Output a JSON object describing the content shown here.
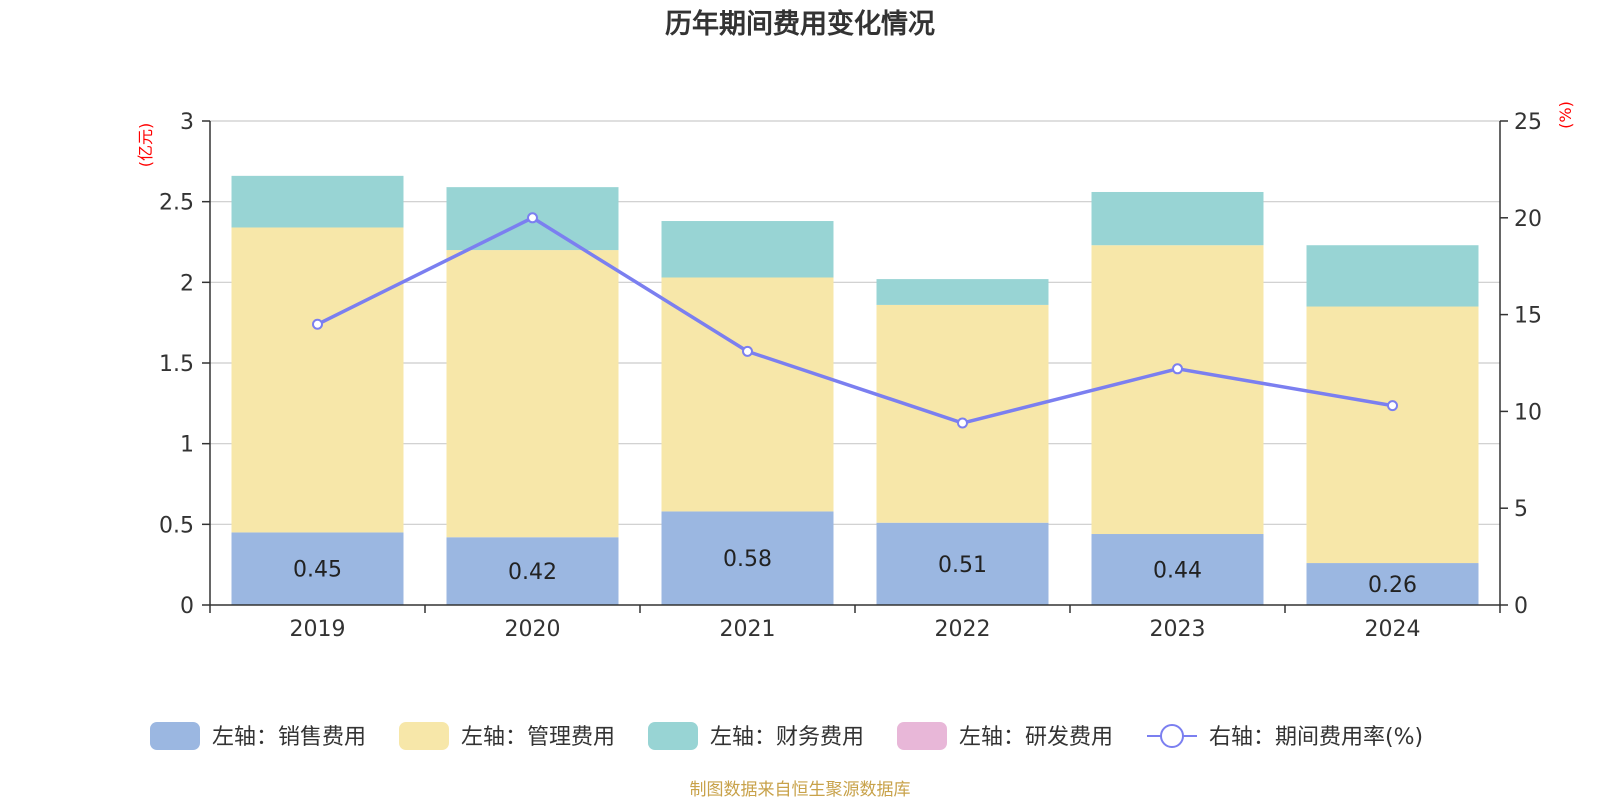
{
  "chart_data": {
    "type": "bar",
    "title": "历年期间费用变化情况",
    "source": "制图数据来自恒生聚源数据库",
    "categories": [
      "2019",
      "2020",
      "2021",
      "2022",
      "2023",
      "2024"
    ],
    "stacked": true,
    "left_axis": {
      "unit": "(亿元)",
      "ylim": [
        0,
        3
      ],
      "ticks": [
        "0",
        "0.5",
        "1",
        "1.5",
        "2",
        "2.5",
        "3"
      ],
      "tick_values": [
        0,
        0.5,
        1,
        1.5,
        2,
        2.5,
        3
      ]
    },
    "right_axis": {
      "unit": "(%)",
      "ylim": [
        0,
        25
      ],
      "ticks": [
        "0",
        "5",
        "10",
        "15",
        "20",
        "25"
      ],
      "tick_values": [
        0,
        5,
        10,
        15,
        20,
        25
      ]
    },
    "grid": true,
    "legend_position": "bottom",
    "series": [
      {
        "name": "左轴：销售费用",
        "type": "bar",
        "axis": "left",
        "color": "#9bb7e1",
        "values": [
          0.45,
          0.42,
          0.58,
          0.51,
          0.44,
          0.26
        ],
        "labels": [
          "0.45",
          "0.42",
          "0.58",
          "0.51",
          "0.44",
          "0.26"
        ]
      },
      {
        "name": "左轴：管理费用",
        "type": "bar",
        "axis": "left",
        "color": "#f7e7a9",
        "values": [
          1.89,
          1.78,
          1.45,
          1.35,
          1.79,
          1.59
        ]
      },
      {
        "name": "左轴：财务费用",
        "type": "bar",
        "axis": "left",
        "color": "#98d4d4",
        "values": [
          0.32,
          0.39,
          0.35,
          0.16,
          0.33,
          0.38
        ]
      },
      {
        "name": "左轴：研发费用",
        "type": "bar",
        "axis": "left",
        "color": "#e8b7d8",
        "values": [
          0,
          0,
          0,
          0,
          0,
          0
        ]
      },
      {
        "name": "右轴：期间费用率(%)",
        "type": "line",
        "axis": "right",
        "color": "#7b7ff0",
        "values": [
          14.5,
          20.0,
          13.1,
          9.4,
          12.2,
          10.3
        ]
      }
    ]
  }
}
